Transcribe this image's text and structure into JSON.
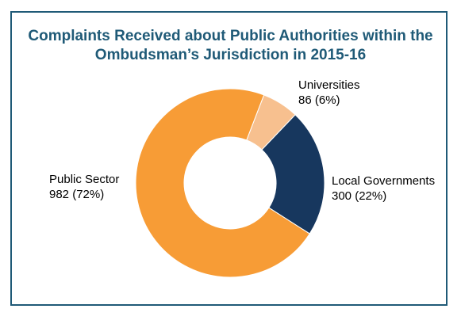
{
  "chart_data": {
    "type": "pie",
    "title_lines": [
      "Complaints Received about Public Authorities within the",
      "Ombudsman’s Jurisdiction in 2015-16"
    ],
    "slices": [
      {
        "name": "Universities",
        "value": 86,
        "label": "86 (6%)",
        "color": "#f7c08f"
      },
      {
        "name": "Local Governments",
        "value": 300,
        "label": "300 (22%)",
        "color": "#17375e"
      },
      {
        "name": "Public Sector",
        "value": 982,
        "label": "982 (72%)",
        "color": "#f79c36"
      }
    ],
    "donut": true,
    "legend": "none"
  },
  "colors": {
    "border": "#1f5a77",
    "title": "#1f5a77",
    "slice_stroke": "#ffffff"
  }
}
